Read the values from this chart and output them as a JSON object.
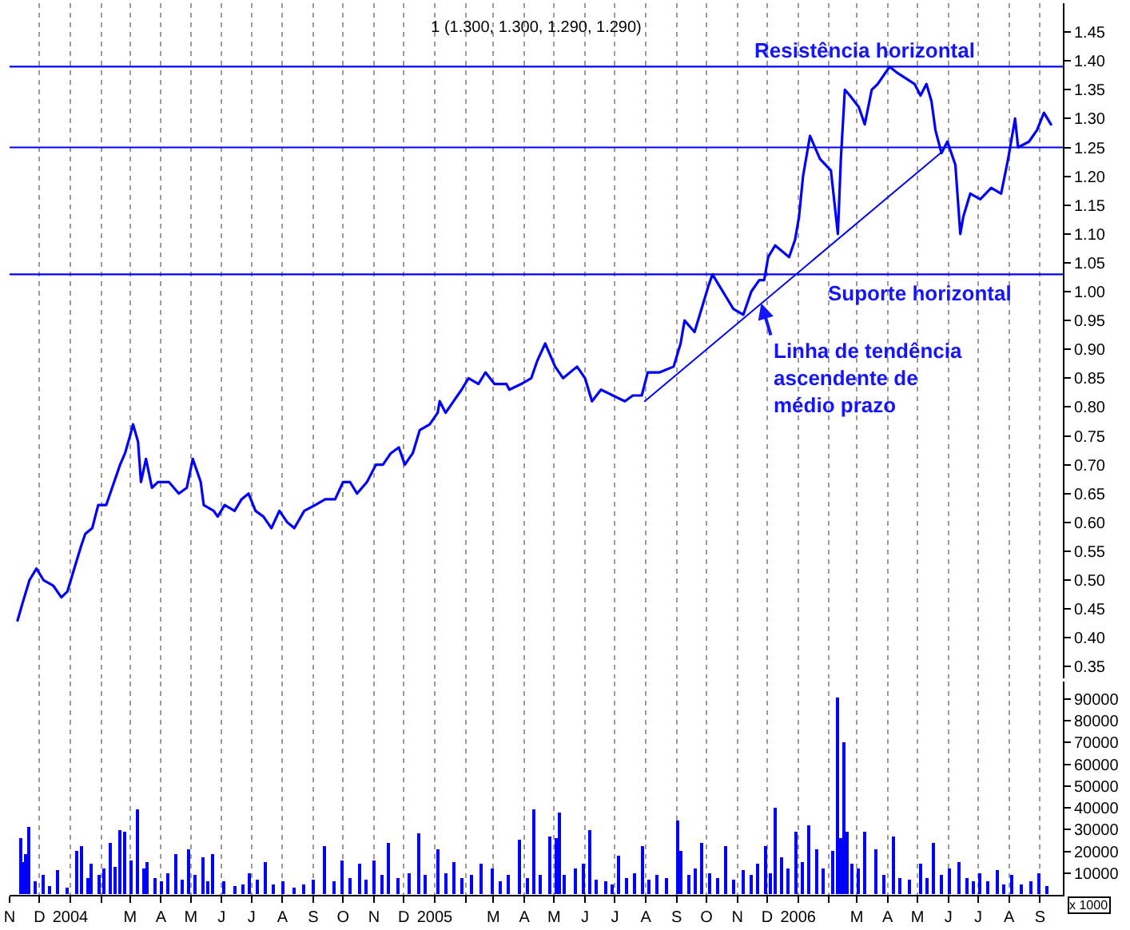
{
  "chart_data": [
    {
      "type": "line",
      "title": "1 (1.300, 1.300, 1.290, 1.290)",
      "x": [
        "2003-11-09",
        "2003-11-14",
        "2003-11-21",
        "2003-11-28",
        "2003-12-05",
        "2003-12-15",
        "2003-12-23",
        "2003-12-29",
        "2004-01-05",
        "2004-01-12",
        "2004-01-16",
        "2004-01-23",
        "2004-01-29",
        "2004-02-06",
        "2004-02-12",
        "2004-02-20",
        "2004-02-25",
        "2004-03-01",
        "2004-03-04",
        "2004-03-09",
        "2004-03-12",
        "2004-03-17",
        "2004-03-23",
        "2004-03-29",
        "2004-04-09",
        "2004-04-19",
        "2004-04-27",
        "2004-05-03",
        "2004-05-11",
        "2004-05-14",
        "2004-05-24",
        "2004-05-28",
        "2004-06-04",
        "2004-06-14",
        "2004-06-21",
        "2004-06-28",
        "2004-07-05",
        "2004-07-13",
        "2004-07-21",
        "2004-07-29",
        "2004-08-06",
        "2004-08-13",
        "2004-08-23",
        "2004-09-03",
        "2004-09-13",
        "2004-09-23",
        "2004-10-01",
        "2004-10-08",
        "2004-10-15",
        "2004-10-25",
        "2004-11-03",
        "2004-11-10",
        "2004-11-18",
        "2004-11-26",
        "2004-12-02",
        "2004-12-10",
        "2004-12-17",
        "2004-12-27",
        "2005-01-04",
        "2005-01-06",
        "2005-01-12",
        "2005-01-20",
        "2005-01-28",
        "2005-02-04",
        "2005-02-14",
        "2005-02-21",
        "2005-03-02",
        "2005-03-14",
        "2005-03-17",
        "2005-03-29",
        "2005-04-08",
        "2005-04-14",
        "2005-04-22",
        "2005-05-02",
        "2005-05-10",
        "2005-05-24",
        "2005-06-01",
        "2005-06-08",
        "2005-06-17",
        "2005-06-29",
        "2005-07-11",
        "2005-07-19",
        "2005-07-28",
        "2005-08-03",
        "2005-08-15",
        "2005-08-29",
        "2005-09-05",
        "2005-09-09",
        "2005-09-19",
        "2005-09-26",
        "2005-10-03",
        "2005-10-07",
        "2005-10-14",
        "2005-10-21",
        "2005-10-28",
        "2005-11-07",
        "2005-11-15",
        "2005-11-23",
        "2005-11-28",
        "2005-12-02",
        "2005-12-09",
        "2005-12-16",
        "2005-12-23",
        "2005-12-29",
        "2006-01-02",
        "2006-01-06",
        "2006-01-13",
        "2006-01-23",
        "2006-02-03",
        "2006-02-10",
        "2006-02-13",
        "2006-02-17",
        "2006-02-22",
        "2006-03-03",
        "2006-03-09",
        "2006-03-16",
        "2006-03-22",
        "2006-04-03",
        "2006-04-10",
        "2006-04-19",
        "2006-04-28",
        "2006-05-04",
        "2006-05-10",
        "2006-05-15",
        "2006-05-19",
        "2006-05-25",
        "2006-05-31",
        "2006-06-08",
        "2006-06-13",
        "2006-06-16",
        "2006-06-23",
        "2006-07-03",
        "2006-07-14",
        "2006-07-24",
        "2006-07-31",
        "2006-08-07",
        "2006-08-10",
        "2006-08-21",
        "2006-08-29",
        "2006-09-05",
        "2006-09-12"
      ],
      "series": [
        {
          "color": "#0000ff",
          "values": [
            0.43,
            0.46,
            0.5,
            0.52,
            0.5,
            0.49,
            0.47,
            0.48,
            0.52,
            0.56,
            0.58,
            0.59,
            0.63,
            0.63,
            0.66,
            0.7,
            0.72,
            0.75,
            0.77,
            0.74,
            0.67,
            0.71,
            0.66,
            0.67,
            0.67,
            0.65,
            0.66,
            0.71,
            0.67,
            0.63,
            0.62,
            0.61,
            0.63,
            0.62,
            0.64,
            0.65,
            0.62,
            0.61,
            0.59,
            0.62,
            0.6,
            0.59,
            0.62,
            0.63,
            0.64,
            0.64,
            0.67,
            0.67,
            0.65,
            0.67,
            0.7,
            0.7,
            0.72,
            0.73,
            0.7,
            0.72,
            0.76,
            0.77,
            0.79,
            0.81,
            0.79,
            0.81,
            0.83,
            0.85,
            0.84,
            0.86,
            0.84,
            0.84,
            0.83,
            0.84,
            0.85,
            0.88,
            0.91,
            0.87,
            0.85,
            0.87,
            0.85,
            0.81,
            0.83,
            0.82,
            0.81,
            0.82,
            0.82,
            0.86,
            0.86,
            0.87,
            0.91,
            0.95,
            0.93,
            0.97,
            1.01,
            1.03,
            1.01,
            0.99,
            0.97,
            0.96,
            1.0,
            1.02,
            1.02,
            1.06,
            1.08,
            1.07,
            1.06,
            1.09,
            1.13,
            1.2,
            1.27,
            1.23,
            1.21,
            1.1,
            1.23,
            1.35,
            1.34,
            1.32,
            1.29,
            1.35,
            1.36,
            1.39,
            1.38,
            1.37,
            1.36,
            1.34,
            1.36,
            1.33,
            1.28,
            1.24,
            1.26,
            1.22,
            1.1,
            1.13,
            1.17,
            1.16,
            1.18,
            1.17,
            1.23,
            1.3,
            1.25,
            1.26,
            1.28,
            1.31,
            1.29
          ]
        },
        {
          "type": "line",
          "color": "#0000ff",
          "x": [
            "2005-07-31",
            "2006-05-24"
          ],
          "values": [
            0.81,
            1.24
          ]
        }
      ],
      "xlim": [
        "2003-11-01",
        "2006-09-24"
      ],
      "xticks": [
        "2003-11-01",
        "2003-12-01",
        "2004-01-01",
        "2004-02-01",
        "2004-03-01",
        "2004-04-01",
        "2004-05-01",
        "2004-06-01",
        "2004-07-01",
        "2004-08-01",
        "2004-09-01",
        "2004-10-01",
        "2004-11-01",
        "2004-12-01",
        "2005-01-01",
        "2005-02-01",
        "2005-03-01",
        "2005-04-01",
        "2005-05-01",
        "2005-06-01",
        "2005-07-01",
        "2005-08-01",
        "2005-09-01",
        "2005-10-01",
        "2005-11-01",
        "2005-12-01",
        "2006-01-01",
        "2006-02-01",
        "2006-03-01",
        "2006-04-01",
        "2006-05-01",
        "2006-06-01",
        "2006-07-01",
        "2006-08-01",
        "2006-09-01"
      ],
      "ylim": [
        0.33,
        1.5
      ],
      "yticks": [
        0.35,
        {
          "value": 0.4,
          "label": "0.40"
        },
        0.45,
        {
          "value": 0.5,
          "label": "0.50"
        },
        0.55,
        {
          "value": 0.6,
          "label": "0.60"
        },
        0.65,
        {
          "value": 0.7,
          "label": "0.70"
        },
        0.75,
        {
          "value": 0.8,
          "label": "0.80"
        },
        0.85,
        {
          "value": 0.9,
          "label": "0.90"
        },
        0.95,
        {
          "value": 1.0,
          "label": "1.00"
        },
        1.05,
        {
          "value": 1.1,
          "label": "1.10"
        },
        1.15,
        {
          "value": 1.2,
          "label": "1.20"
        },
        1.25,
        {
          "value": 1.3,
          "label": "1.30"
        },
        1.35,
        {
          "value": 1.4,
          "label": "1.40"
        },
        1.45
      ],
      "grid": "x",
      "tick_labels": "y",
      "ref_lines": [
        {
          "axis": "y",
          "value": 1.39,
          "label": "Resistência horizontal",
          "color": "#0000ff"
        },
        {
          "axis": "y",
          "value": 1.25,
          "color": "#0000ff"
        },
        {
          "axis": "y",
          "value": 1.03,
          "label": "Suporte horizontal",
          "color": "#0000ff"
        }
      ],
      "annotations": [
        {
          "text": "Linha de tendência\nascendente de\nmédio prazo",
          "x": "2005-11-25",
          "y": 0.98
        }
      ]
    },
    {
      "type": "bar",
      "color": "#0000ff",
      "ylabel": "x 1000",
      "x": [
        "2003-11-12",
        "2003-11-15",
        "2003-11-18",
        "2003-11-21",
        "2003-11-27",
        "2003-12-05",
        "2003-12-12",
        "2003-12-19",
        "2003-12-29",
        "2004-01-08",
        "2004-01-13",
        "2004-01-19",
        "2004-01-23",
        "2004-01-30",
        "2004-02-04",
        "2004-02-11",
        "2004-02-16",
        "2004-02-20",
        "2004-02-25",
        "2004-03-02",
        "2004-03-09",
        "2004-03-15",
        "2004-03-19",
        "2004-03-26",
        "2004-04-02",
        "2004-04-08",
        "2004-04-16",
        "2004-04-22",
        "2004-04-29",
        "2004-05-06",
        "2004-05-13",
        "2004-05-18",
        "2004-05-24",
        "2004-06-04",
        "2004-06-14",
        "2004-06-22",
        "2004-06-29",
        "2004-07-08",
        "2004-07-16",
        "2004-07-23",
        "2004-08-02",
        "2004-08-13",
        "2004-08-23",
        "2004-09-01",
        "2004-09-13",
        "2004-09-22",
        "2004-10-01",
        "2004-10-08",
        "2004-10-18",
        "2004-10-25",
        "2004-11-02",
        "2004-11-09",
        "2004-11-16",
        "2004-11-25",
        "2004-12-06",
        "2004-12-17",
        "2004-12-23",
        "2005-01-04",
        "2005-01-12",
        "2005-01-20",
        "2005-01-28",
        "2005-02-07",
        "2005-02-17",
        "2005-02-28",
        "2005-03-08",
        "2005-03-17",
        "2005-03-28",
        "2005-04-04",
        "2005-04-11",
        "2005-04-18",
        "2005-04-27",
        "2005-05-03",
        "2005-05-06",
        "2005-05-12",
        "2005-05-23",
        "2005-05-30",
        "2005-06-06",
        "2005-06-13",
        "2005-06-22",
        "2005-06-29",
        "2005-07-05",
        "2005-07-13",
        "2005-07-21",
        "2005-07-29",
        "2005-08-04",
        "2005-08-12",
        "2005-08-22",
        "2005-09-02",
        "2005-09-06",
        "2005-09-14",
        "2005-09-20",
        "2005-09-26",
        "2005-10-05",
        "2005-10-12",
        "2005-10-20",
        "2005-10-28",
        "2005-11-08",
        "2005-11-16",
        "2005-11-22",
        "2005-11-29",
        "2005-12-05",
        "2005-12-09",
        "2005-12-16",
        "2005-12-22",
        "2005-12-30",
        "2006-01-05",
        "2006-01-12",
        "2006-01-20",
        "2006-01-27",
        "2006-02-06",
        "2006-02-10",
        "2006-02-14",
        "2006-02-16",
        "2006-02-20",
        "2006-02-24",
        "2006-03-03",
        "2006-03-10",
        "2006-03-20",
        "2006-03-28",
        "2006-04-07",
        "2006-04-14",
        "2006-04-24",
        "2006-05-05",
        "2006-05-11",
        "2006-05-18",
        "2006-05-25",
        "2006-06-02",
        "2006-06-12",
        "2006-06-20",
        "2006-06-27",
        "2006-07-03",
        "2006-07-11",
        "2006-07-20",
        "2006-07-27",
        "2006-08-04",
        "2006-08-14",
        "2006-08-23",
        "2006-09-01",
        "2006-09-08"
      ],
      "values": [
        26000,
        15000,
        19000,
        31000,
        6000,
        9000,
        4000,
        11000,
        3000,
        20000,
        22000,
        8000,
        14000,
        9000,
        12000,
        24000,
        13000,
        30000,
        29000,
        16000,
        39000,
        12000,
        15000,
        8000,
        6000,
        10000,
        19000,
        7000,
        21000,
        9000,
        17000,
        6000,
        19000,
        6000,
        4000,
        5000,
        10000,
        7000,
        15000,
        5000,
        6000,
        3000,
        5000,
        7000,
        22000,
        6000,
        16000,
        8000,
        14000,
        7000,
        16000,
        9000,
        24000,
        8000,
        10000,
        28000,
        9000,
        21000,
        10000,
        15000,
        8000,
        9000,
        14000,
        12000,
        6000,
        9000,
        25000,
        8000,
        39000,
        9000,
        27000,
        26000,
        38000,
        9000,
        12000,
        14000,
        30000,
        7000,
        6000,
        5000,
        18000,
        8000,
        10000,
        22000,
        7000,
        9000,
        8000,
        34000,
        20000,
        9000,
        12000,
        24000,
        10000,
        8000,
        22000,
        7000,
        11000,
        9000,
        14000,
        22000,
        10000,
        40000,
        17000,
        12000,
        29000,
        15000,
        32000,
        21000,
        12000,
        20000,
        91000,
        26000,
        70000,
        29000,
        14000,
        12000,
        29000,
        21000,
        9000,
        27000,
        8000,
        7000,
        14000,
        8000,
        24000,
        9000,
        12000,
        15000,
        8000,
        6000,
        10000,
        6000,
        11000,
        5000,
        9000,
        5000,
        6000,
        10000,
        4000
      ],
      "xlim": [
        "2003-11-01",
        "2006-09-24"
      ],
      "xticks": [
        {
          "value": "2003-11-01",
          "label": "N"
        },
        {
          "value": "2003-12-01",
          "label": "D"
        },
        {
          "value": "2004-01-01",
          "label": "2004"
        },
        {
          "value": "2004-02-01",
          "label": null
        },
        {
          "value": "2004-03-01",
          "label": "M"
        },
        {
          "value": "2004-04-01",
          "label": "A"
        },
        {
          "value": "2004-05-01",
          "label": "M"
        },
        {
          "value": "2004-06-01",
          "label": "J"
        },
        {
          "value": "2004-07-01",
          "label": "J"
        },
        {
          "value": "2004-08-01",
          "label": "A"
        },
        {
          "value": "2004-09-01",
          "label": "S"
        },
        {
          "value": "2004-10-01",
          "label": "O"
        },
        {
          "value": "2004-11-01",
          "label": "N"
        },
        {
          "value": "2004-12-01",
          "label": "D"
        },
        {
          "value": "2005-01-01",
          "label": "2005"
        },
        {
          "value": "2005-02-01",
          "label": null
        },
        {
          "value": "2005-03-01",
          "label": "M"
        },
        {
          "value": "2005-04-01",
          "label": "A"
        },
        {
          "value": "2005-05-01",
          "label": "M"
        },
        {
          "value": "2005-06-01",
          "label": "J"
        },
        {
          "value": "2005-07-01",
          "label": "J"
        },
        {
          "value": "2005-08-01",
          "label": "A"
        },
        {
          "value": "2005-09-01",
          "label": "S"
        },
        {
          "value": "2005-10-01",
          "label": "O"
        },
        {
          "value": "2005-11-01",
          "label": "N"
        },
        {
          "value": "2005-12-01",
          "label": "D"
        },
        {
          "value": "2006-01-01",
          "label": "2006"
        },
        {
          "value": "2006-02-01",
          "label": null
        },
        {
          "value": "2006-03-01",
          "label": "M"
        },
        {
          "value": "2006-04-01",
          "label": "A"
        },
        {
          "value": "2006-05-01",
          "label": "M"
        },
        {
          "value": "2006-06-01",
          "label": "J"
        },
        {
          "value": "2006-07-01",
          "label": "J"
        },
        {
          "value": "2006-08-01",
          "label": "A"
        },
        {
          "value": "2006-09-01",
          "label": "S"
        }
      ],
      "ylim": [
        0,
        98000
      ],
      "yticks": [
        10000,
        20000,
        30000,
        40000,
        50000,
        60000,
        70000,
        80000,
        90000
      ],
      "grid": "x"
    }
  ]
}
